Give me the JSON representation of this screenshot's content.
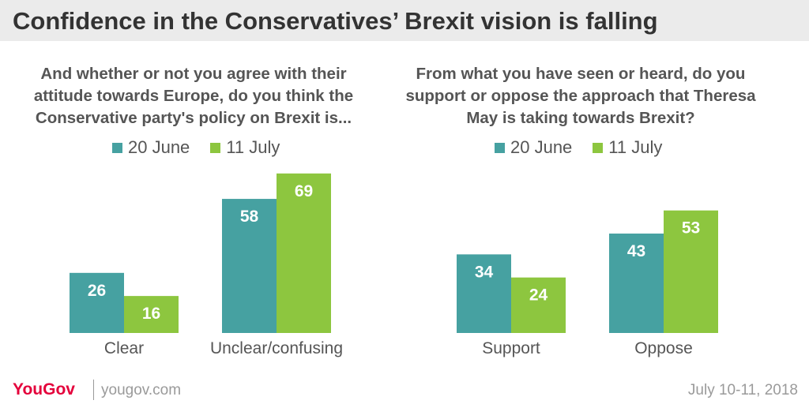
{
  "title": "Confidence in the Conservatives’ Brexit vision is falling",
  "colors": {
    "series_1": "#46a1a1",
    "series_2": "#8dc63f"
  },
  "chart_data": [
    {
      "type": "bar",
      "title": "And whether or not you agree with their attitude towards Europe, do you think the Conservative party's policy on Brexit is...",
      "categories": [
        "Clear",
        "Unclear/confusing"
      ],
      "series": [
        {
          "name": "20 June",
          "values": [
            26,
            58
          ]
        },
        {
          "name": "11 July",
          "values": [
            16,
            69
          ]
        }
      ],
      "ylim": [
        0,
        75
      ],
      "grid": false,
      "legend": "top"
    },
    {
      "type": "bar",
      "title": "From what you have seen or heard, do you support or oppose the approach that Theresa May is taking towards Brexit?",
      "categories": [
        "Support",
        "Oppose"
      ],
      "series": [
        {
          "name": "20 June",
          "values": [
            34,
            43
          ]
        },
        {
          "name": "11 July",
          "values": [
            24,
            53
          ]
        }
      ],
      "ylim": [
        0,
        75
      ],
      "grid": false,
      "legend": "top"
    }
  ],
  "footer": {
    "logo_you": "You",
    "logo_gov": "Gov",
    "site": "yougov.com",
    "date": "July 10-11, 2018"
  }
}
